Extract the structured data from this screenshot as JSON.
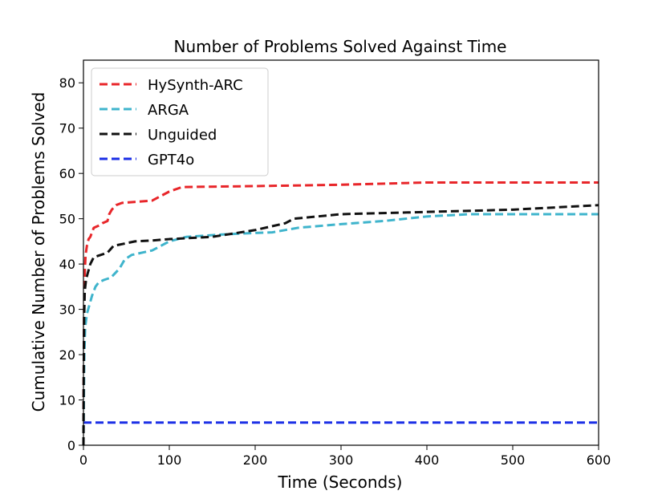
{
  "chart_data": {
    "type": "line",
    "title": "Number of Problems Solved Against Time",
    "xlabel": "Time (Seconds)",
    "ylabel": "Cumulative Number of Problems Solved",
    "xlim": [
      0,
      600
    ],
    "ylim": [
      0,
      85
    ],
    "xticks": [
      0,
      100,
      200,
      300,
      400,
      500,
      600
    ],
    "yticks": [
      0,
      10,
      20,
      30,
      40,
      50,
      60,
      70,
      80
    ],
    "grid": false,
    "legend_position": "upper-left",
    "series": [
      {
        "name": "HySynth-ARC",
        "color": "#e8262a",
        "points": [
          [
            0,
            0
          ],
          [
            0.3,
            15
          ],
          [
            0.8,
            30
          ],
          [
            1.5,
            38
          ],
          [
            2.5,
            42
          ],
          [
            4,
            44
          ],
          [
            6,
            45.5
          ],
          [
            8,
            46
          ],
          [
            12,
            48
          ],
          [
            18,
            48.5
          ],
          [
            22,
            49
          ],
          [
            28,
            49.5
          ],
          [
            30,
            51
          ],
          [
            33,
            52
          ],
          [
            38,
            53
          ],
          [
            45,
            53.5
          ],
          [
            80,
            54
          ],
          [
            90,
            55
          ],
          [
            100,
            56
          ],
          [
            115,
            57
          ],
          [
            200,
            57.2
          ],
          [
            300,
            57.5
          ],
          [
            400,
            58
          ],
          [
            500,
            58
          ],
          [
            600,
            58
          ]
        ]
      },
      {
        "name": "ARGA",
        "color": "#3fb4cc",
        "points": [
          [
            0,
            0
          ],
          [
            0.5,
            10
          ],
          [
            1,
            20
          ],
          [
            2,
            26
          ],
          [
            4,
            29
          ],
          [
            7,
            31
          ],
          [
            10,
            33
          ],
          [
            14,
            35
          ],
          [
            18,
            36
          ],
          [
            24,
            36.5
          ],
          [
            32,
            37
          ],
          [
            42,
            39
          ],
          [
            48,
            41
          ],
          [
            56,
            42
          ],
          [
            80,
            43
          ],
          [
            100,
            45
          ],
          [
            120,
            46
          ],
          [
            160,
            46.5
          ],
          [
            180,
            46.7
          ],
          [
            220,
            47
          ],
          [
            250,
            48
          ],
          [
            300,
            48.8
          ],
          [
            350,
            49.5
          ],
          [
            400,
            50.5
          ],
          [
            450,
            51
          ],
          [
            500,
            51
          ],
          [
            600,
            51
          ]
        ]
      },
      {
        "name": "Unguided",
        "color": "#111111",
        "points": [
          [
            0,
            0
          ],
          [
            0.3,
            15
          ],
          [
            0.8,
            28
          ],
          [
            1.5,
            34
          ],
          [
            3,
            36.5
          ],
          [
            5,
            38
          ],
          [
            8,
            40
          ],
          [
            12,
            41.5
          ],
          [
            20,
            42
          ],
          [
            28,
            42.5
          ],
          [
            35,
            44
          ],
          [
            40,
            44.2
          ],
          [
            60,
            45
          ],
          [
            80,
            45.2
          ],
          [
            100,
            45.5
          ],
          [
            150,
            46
          ],
          [
            200,
            47.5
          ],
          [
            235,
            49
          ],
          [
            245,
            50
          ],
          [
            300,
            51
          ],
          [
            400,
            51.5
          ],
          [
            500,
            52
          ],
          [
            600,
            53
          ]
        ]
      },
      {
        "name": "GPT4o",
        "color": "#1a2ee6",
        "points": [
          [
            0,
            5
          ],
          [
            600,
            5
          ]
        ]
      }
    ]
  }
}
